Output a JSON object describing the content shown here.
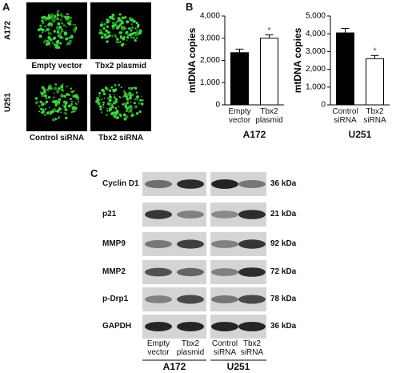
{
  "panels": {
    "a": "A",
    "b": "B",
    "c": "C"
  },
  "microscopy": {
    "rows": [
      "A172",
      "U251"
    ],
    "captions": [
      [
        "Empty vector",
        "Tbx2 plasmid"
      ],
      [
        "Control siRNA",
        "Tbx2 siRNA"
      ]
    ]
  },
  "chart_data": [
    {
      "type": "bar",
      "ylabel": "mtDNA copies",
      "xlabel": "A172",
      "categories": [
        "Empty vector",
        "Tbx2 plasmid"
      ],
      "values": [
        2350,
        3000
      ],
      "errors": [
        160,
        150
      ],
      "colors": [
        "#000000",
        "#ffffff"
      ],
      "annotations": [
        null,
        "*"
      ],
      "ylim": [
        0,
        4000
      ],
      "yticks": [
        0,
        {
          "value": 1000,
          "label": "1,000"
        },
        {
          "value": 2000,
          "label": "2,000"
        },
        {
          "value": 3000,
          "label": "3,000"
        },
        {
          "value": 4000,
          "label": "4,000"
        }
      ]
    },
    {
      "type": "bar",
      "ylabel": "mtDNA copies",
      "xlabel": "U251",
      "categories": [
        "Control siRNA",
        "Tbx2 siRNA"
      ],
      "values": [
        4050,
        2600
      ],
      "errors": [
        250,
        180
      ],
      "colors": [
        "#000000",
        "#ffffff"
      ],
      "annotations": [
        null,
        "*"
      ],
      "ylim": [
        0,
        5000
      ],
      "yticks": [
        0,
        {
          "value": 1000,
          "label": "1,000"
        },
        {
          "value": 2000,
          "label": "2,000"
        },
        {
          "value": 3000,
          "label": "3,000"
        },
        {
          "value": 4000,
          "label": "4,000"
        },
        {
          "value": 5000,
          "label": "5,000"
        }
      ]
    }
  ],
  "blot": {
    "proteins": [
      "Cyclin D1",
      "p21",
      "MMP9",
      "MMP2",
      "p-Drp1",
      "GAPDH"
    ],
    "sizes": [
      "36 kDa",
      "21 kDa",
      "92 kDa",
      "72 kDa",
      "78 kDa",
      "36 kDa"
    ],
    "lanes": [
      "Empty vector",
      "Tbx2 plasmid",
      "Control siRNA",
      "Tbx2 siRNA"
    ],
    "groups": [
      "A172",
      "U251"
    ]
  }
}
